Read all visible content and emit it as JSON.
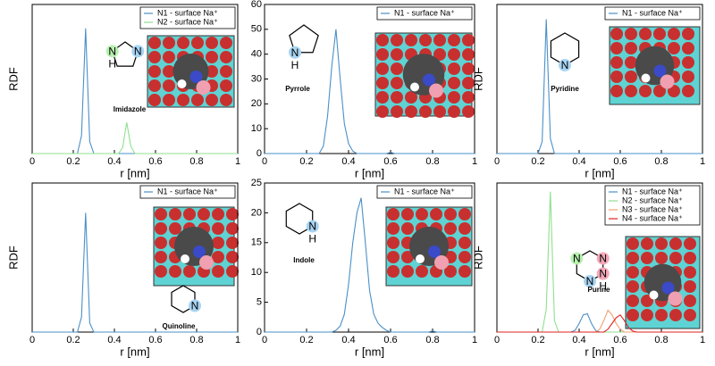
{
  "chart_data": [
    {
      "type": "line",
      "ylabel": "RDF",
      "xlabel": "r [nm]",
      "annotation": "Imidazole",
      "atoms": [
        "N",
        "N",
        "H"
      ],
      "x": [
        0,
        0.02,
        0.04,
        0.06,
        0.08,
        0.1,
        0.12,
        0.14,
        0.16,
        0.18,
        0.2,
        0.22,
        0.24,
        0.26,
        0.28,
        0.3,
        0.32,
        0.34,
        0.36,
        0.38,
        0.4,
        0.42,
        0.44,
        0.46,
        0.48,
        0.5,
        0.52,
        0.54,
        0.56,
        0.58,
        0.6,
        0.62,
        0.64,
        0.66,
        0.68,
        0.7,
        0.72,
        0.74,
        0.76,
        0.78,
        0.8,
        0.82,
        0.84,
        0.86,
        0.88,
        0.9,
        0.92,
        0.94,
        0.96,
        0.98,
        1
      ],
      "xlim": [
        0,
        1
      ],
      "xticks": [
        0,
        0.2,
        0.4,
        0.6,
        0.8,
        1
      ],
      "ylim": [
        0,
        250
      ],
      "series": [
        {
          "name": "N1 - surface Na⁺",
          "color": "#4a90c8",
          "values": [
            0,
            0,
            0,
            0,
            0,
            0,
            0,
            0,
            0,
            0,
            0,
            0,
            30,
            210,
            20,
            0,
            0,
            0,
            0,
            0,
            0,
            0,
            0,
            0,
            0,
            0,
            0,
            0,
            0,
            0,
            0,
            0,
            0,
            0,
            0,
            0,
            0,
            0,
            0,
            0,
            0,
            0,
            0,
            0,
            0,
            0,
            0,
            0,
            0,
            0,
            0
          ]
        },
        {
          "name": "N2 - surface Na⁺",
          "color": "#8fe08f",
          "values": [
            0,
            0,
            0,
            0,
            0,
            0,
            0,
            0,
            0,
            0,
            0,
            0,
            0,
            0,
            0,
            0,
            0,
            0,
            0,
            0,
            0,
            0,
            10,
            52,
            12,
            0,
            0,
            0,
            0,
            0,
            0,
            0,
            0,
            0,
            0,
            0,
            0,
            0,
            0,
            0,
            0,
            0,
            0,
            0,
            0,
            0,
            0,
            0,
            0,
            0,
            0
          ]
        }
      ]
    },
    {
      "type": "line",
      "xlabel": "r [nm]",
      "annotation": "Pyrrole",
      "atoms": [
        "N",
        "H"
      ],
      "x": [
        0,
        0.02,
        0.04,
        0.06,
        0.08,
        0.1,
        0.12,
        0.14,
        0.16,
        0.18,
        0.2,
        0.22,
        0.24,
        0.26,
        0.28,
        0.3,
        0.32,
        0.34,
        0.36,
        0.38,
        0.4,
        0.42,
        0.44,
        0.46,
        0.48,
        0.5,
        0.52,
        0.54,
        0.56,
        0.58,
        0.6,
        0.62,
        0.64,
        0.66,
        0.68,
        0.7,
        0.72,
        0.74,
        0.76,
        0.78,
        0.8,
        0.82,
        0.84,
        0.86,
        0.88,
        0.9,
        0.92,
        0.94,
        0.96,
        0.98,
        1
      ],
      "xlim": [
        0,
        1
      ],
      "xticks": [
        0,
        0.2,
        0.4,
        0.6,
        0.8,
        1
      ],
      "ylim": [
        0,
        60
      ],
      "yticks": [
        0,
        10,
        20,
        30,
        40,
        50,
        60
      ],
      "series": [
        {
          "name": "N1 - surface Na⁺",
          "color": "#4a90c8",
          "values": [
            0,
            0,
            0,
            0,
            0,
            0,
            0,
            0,
            0,
            0,
            0,
            0,
            0,
            0,
            3,
            15,
            35,
            50,
            30,
            12,
            4,
            1,
            0,
            0,
            0,
            0,
            0,
            0,
            0,
            0,
            0.5,
            0,
            0,
            0,
            0,
            0,
            0,
            0,
            0,
            0,
            0,
            0,
            0,
            0,
            0,
            0,
            0,
            0,
            0,
            0,
            0
          ]
        }
      ]
    },
    {
      "type": "line",
      "ylabel": "RDF",
      "xlabel": "r [nm]",
      "annotation": "Pyridine",
      "atoms": [
        "N"
      ],
      "x": [
        0,
        0.02,
        0.04,
        0.06,
        0.08,
        0.1,
        0.12,
        0.14,
        0.16,
        0.18,
        0.2,
        0.22,
        0.24,
        0.26,
        0.28,
        0.3,
        0.32,
        0.34,
        0.36,
        0.38,
        0.4,
        0.42,
        0.44,
        0.46,
        0.48,
        0.5,
        0.52,
        0.54,
        0.56,
        0.58,
        0.6,
        0.62,
        0.64,
        0.66,
        0.68,
        0.7,
        0.72,
        0.74,
        0.76,
        0.78,
        0.8,
        0.82,
        0.84,
        0.86,
        0.88,
        0.9,
        0.92,
        0.94,
        0.96,
        0.98,
        1
      ],
      "xlim": [
        0,
        1
      ],
      "xticks": [
        0,
        0.2,
        0.4,
        0.6,
        0.8,
        1
      ],
      "ylim": [
        0,
        250
      ],
      "series": [
        {
          "name": "N1 - surface Na⁺",
          "color": "#4a90c8",
          "values": [
            0,
            0,
            0,
            0,
            0,
            0,
            0,
            0,
            0,
            0,
            0,
            20,
            225,
            25,
            0,
            0,
            0,
            0,
            0,
            0,
            0,
            0,
            0,
            0,
            0,
            0,
            0,
            0,
            0,
            0,
            0,
            0,
            0,
            0,
            0,
            0,
            0,
            0,
            0,
            0,
            0,
            0,
            0,
            0,
            0,
            0,
            0,
            0,
            0,
            0,
            0
          ]
        }
      ]
    },
    {
      "type": "line",
      "ylabel": "RDF",
      "xlabel": "r [nm]",
      "annotation": "Quinoline",
      "atoms": [
        "N"
      ],
      "x": [
        0,
        0.02,
        0.04,
        0.06,
        0.08,
        0.1,
        0.12,
        0.14,
        0.16,
        0.18,
        0.2,
        0.22,
        0.24,
        0.26,
        0.28,
        0.3,
        0.32,
        0.34,
        0.36,
        0.38,
        0.4,
        0.42,
        0.44,
        0.46,
        0.48,
        0.5,
        0.52,
        0.54,
        0.56,
        0.58,
        0.6,
        0.62,
        0.64,
        0.66,
        0.68,
        0.7,
        0.72,
        0.74,
        0.76,
        0.78,
        0.8,
        0.82,
        0.84,
        0.86,
        0.88,
        0.9,
        0.92,
        0.94,
        0.96,
        0.98,
        1
      ],
      "xlim": [
        0,
        1
      ],
      "xticks": [
        0,
        0.2,
        0.4,
        0.6,
        0.8,
        1
      ],
      "ylim": [
        0,
        250
      ],
      "series": [
        {
          "name": "N1 - surface Na⁺",
          "color": "#4a90c8",
          "values": [
            0,
            0,
            0,
            0,
            0,
            0,
            0,
            0,
            0,
            0,
            0,
            0,
            25,
            200,
            15,
            0,
            0,
            0,
            0,
            0,
            0,
            0,
            0,
            0,
            0,
            0,
            0,
            0,
            0,
            0,
            0,
            0,
            0,
            0,
            0,
            0,
            0,
            0,
            0,
            0,
            0,
            0,
            0,
            0,
            0,
            0,
            0,
            0,
            0,
            0,
            0
          ]
        }
      ]
    },
    {
      "type": "line",
      "xlabel": "r [nm]",
      "annotation": "Indole",
      "atoms": [
        "N",
        "H"
      ],
      "x": [
        0,
        0.02,
        0.04,
        0.06,
        0.08,
        0.1,
        0.12,
        0.14,
        0.16,
        0.18,
        0.2,
        0.22,
        0.24,
        0.26,
        0.28,
        0.3,
        0.32,
        0.34,
        0.36,
        0.38,
        0.4,
        0.42,
        0.44,
        0.46,
        0.48,
        0.5,
        0.52,
        0.54,
        0.56,
        0.58,
        0.6,
        0.62,
        0.64,
        0.66,
        0.68,
        0.7,
        0.72,
        0.74,
        0.76,
        0.78,
        0.8,
        0.82,
        0.84,
        0.86,
        0.88,
        0.9,
        0.92,
        0.94,
        0.96,
        0.98,
        1
      ],
      "xlim": [
        0,
        1
      ],
      "xticks": [
        0,
        0.2,
        0.4,
        0.6,
        0.8,
        1
      ],
      "ylim": [
        0,
        25
      ],
      "yticks": [
        0,
        5,
        10,
        15,
        20,
        25
      ],
      "series": [
        {
          "name": "N1 - surface Na⁺",
          "color": "#4a90c8",
          "values": [
            0,
            0,
            0,
            0,
            0,
            0,
            0,
            0,
            0,
            0,
            0,
            0,
            0,
            0,
            0,
            0,
            0,
            0.3,
            1,
            3,
            8,
            15,
            20,
            22.5,
            15,
            7,
            3,
            1.5,
            0.8,
            0.3,
            0,
            0,
            0,
            0,
            0,
            0,
            0,
            0,
            0,
            0,
            0.2,
            0,
            0,
            0,
            0,
            0,
            0,
            0,
            0,
            0,
            0
          ]
        }
      ]
    },
    {
      "type": "line",
      "ylabel": "RDF",
      "xlabel": "r [nm]",
      "annotation": "Purine",
      "atoms": [
        "N",
        "N",
        "N",
        "N",
        "H"
      ],
      "x": [
        0,
        0.02,
        0.04,
        0.06,
        0.08,
        0.1,
        0.12,
        0.14,
        0.16,
        0.18,
        0.2,
        0.22,
        0.24,
        0.26,
        0.28,
        0.3,
        0.32,
        0.34,
        0.36,
        0.38,
        0.4,
        0.42,
        0.44,
        0.46,
        0.48,
        0.5,
        0.52,
        0.54,
        0.56,
        0.58,
        0.6,
        0.62,
        0.64,
        0.66,
        0.68,
        0.7,
        0.72,
        0.74,
        0.76,
        0.78,
        0.8,
        0.82,
        0.84,
        0.86,
        0.88,
        0.9,
        0.92,
        0.94,
        0.96,
        0.98,
        1
      ],
      "xlim": [
        0,
        1
      ],
      "xticks": [
        0,
        0.2,
        0.4,
        0.6,
        0.8,
        1
      ],
      "ylim": [
        0,
        260
      ],
      "series": [
        {
          "name": "N1 - surface Na⁺",
          "color": "#4a90c8",
          "values": [
            0,
            0,
            0,
            0,
            0,
            0,
            0,
            0,
            0,
            0,
            0,
            0,
            0,
            0,
            0,
            0,
            0,
            0,
            0,
            3,
            15,
            30,
            32,
            15,
            3,
            0,
            0,
            0,
            0,
            0,
            0,
            0,
            0,
            0,
            0,
            0,
            0,
            0,
            0,
            0,
            0,
            0,
            0,
            0,
            0,
            0,
            0,
            0,
            0,
            0,
            0
          ]
        },
        {
          "name": "N2 - surface Na⁺",
          "color": "#8fe08f",
          "values": [
            0,
            0,
            0,
            0,
            0,
            0,
            0,
            0,
            0,
            0,
            0,
            0,
            40,
            245,
            20,
            0,
            0,
            0,
            0,
            0,
            0,
            0,
            0,
            0,
            0,
            0,
            0,
            0,
            0,
            0,
            0,
            0,
            0,
            0,
            0,
            0,
            0,
            0,
            0,
            0,
            0,
            0,
            0,
            0,
            0,
            0,
            0,
            0,
            0,
            0,
            0
          ]
        },
        {
          "name": "N3 - surface Na⁺",
          "color": "#f0a070",
          "values": [
            0,
            0,
            0,
            0,
            0,
            0,
            0,
            0,
            0,
            0,
            0,
            0,
            0,
            0,
            0,
            0,
            0,
            0,
            0,
            0,
            0,
            0,
            0,
            0,
            0,
            5,
            20,
            38,
            30,
            15,
            5,
            0,
            0,
            0,
            0,
            0,
            0,
            0,
            0,
            0,
            0,
            0,
            0,
            0,
            0,
            0,
            0,
            0,
            0,
            0,
            0
          ]
        },
        {
          "name": "N4 - surface Na⁺",
          "color": "#e02020",
          "values": [
            0,
            0,
            0,
            0,
            0,
            0,
            0,
            0,
            0,
            0,
            0,
            0,
            0,
            0,
            0,
            0,
            0,
            0,
            0,
            0,
            0,
            0,
            0,
            0,
            0,
            0,
            0,
            5,
            15,
            25,
            30,
            20,
            8,
            2,
            0,
            0,
            0,
            0,
            0,
            0,
            0,
            0,
            0,
            0,
            0,
            0,
            0,
            0,
            0,
            0,
            0
          ]
        }
      ]
    }
  ]
}
